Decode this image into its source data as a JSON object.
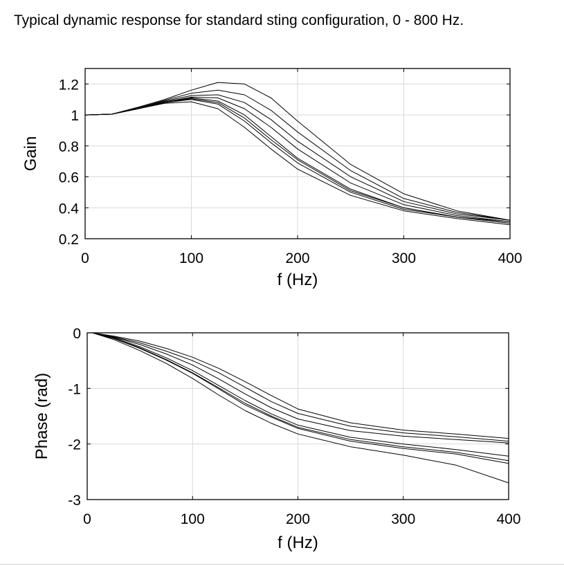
{
  "page": {
    "title": "Typical dynamic response for standard sting configuration, 0 - 800 Hz."
  },
  "chart_data": [
    {
      "type": "line",
      "xlabel": "f (Hz)",
      "ylabel": "Gain",
      "xlim": [
        0,
        400
      ],
      "ylim": [
        0.2,
        1.3
      ],
      "xticks": [
        0,
        100,
        200,
        300,
        400
      ],
      "yticks": [
        0.2,
        0.4,
        0.6,
        0.8,
        1,
        1.2
      ],
      "xtick_labels": [
        "0",
        "100",
        "200",
        "300",
        "400"
      ],
      "ytick_labels": [
        "0.2",
        "0.4",
        "0.6",
        "0.8",
        "1",
        "1.2"
      ],
      "grid": true,
      "line_color": "#000000",
      "grid_color": "#d9d9d9",
      "series": [
        {
          "x": [
            0,
            25,
            50,
            75,
            100,
            125,
            150,
            175,
            200,
            250,
            300,
            350,
            400
          ],
          "values": [
            1.0,
            1.005,
            1.04,
            1.075,
            1.085,
            1.04,
            0.92,
            0.78,
            0.65,
            0.48,
            0.38,
            0.33,
            0.29
          ]
        },
        {
          "x": [
            0,
            25,
            50,
            75,
            100,
            125,
            150,
            175,
            200,
            250,
            300,
            350,
            400
          ],
          "values": [
            1.0,
            1.005,
            1.04,
            1.08,
            1.1,
            1.07,
            0.96,
            0.82,
            0.69,
            0.5,
            0.39,
            0.34,
            0.3
          ]
        },
        {
          "x": [
            0,
            25,
            50,
            75,
            100,
            125,
            150,
            175,
            200,
            250,
            300,
            350,
            400
          ],
          "values": [
            1.0,
            1.005,
            1.04,
            1.08,
            1.105,
            1.08,
            0.98,
            0.84,
            0.71,
            0.51,
            0.4,
            0.34,
            0.3
          ]
        },
        {
          "x": [
            0,
            25,
            50,
            75,
            100,
            125,
            150,
            175,
            200,
            250,
            300,
            350,
            400
          ],
          "values": [
            1.0,
            1.005,
            1.04,
            1.08,
            1.11,
            1.09,
            1.0,
            0.86,
            0.72,
            0.52,
            0.4,
            0.34,
            0.31
          ]
        },
        {
          "x": [
            0,
            25,
            50,
            75,
            100,
            125,
            150,
            175,
            200,
            250,
            300,
            350,
            400
          ],
          "values": [
            1.0,
            1.005,
            1.045,
            1.085,
            1.115,
            1.11,
            1.04,
            0.92,
            0.78,
            0.56,
            0.42,
            0.35,
            0.31
          ]
        },
        {
          "x": [
            0,
            25,
            50,
            75,
            100,
            125,
            150,
            175,
            200,
            250,
            300,
            350,
            400
          ],
          "values": [
            1.0,
            1.005,
            1.045,
            1.09,
            1.125,
            1.13,
            1.08,
            0.97,
            0.83,
            0.6,
            0.44,
            0.36,
            0.32
          ]
        },
        {
          "x": [
            0,
            25,
            50,
            75,
            100,
            125,
            150,
            175,
            200,
            250,
            300,
            350,
            400
          ],
          "values": [
            1.0,
            1.005,
            1.045,
            1.095,
            1.14,
            1.16,
            1.13,
            1.03,
            0.89,
            0.64,
            0.46,
            0.37,
            0.32
          ]
        },
        {
          "x": [
            0,
            25,
            50,
            75,
            100,
            125,
            150,
            175,
            200,
            250,
            300,
            350,
            400
          ],
          "values": [
            1.0,
            1.005,
            1.05,
            1.1,
            1.16,
            1.21,
            1.2,
            1.11,
            0.96,
            0.68,
            0.49,
            0.38,
            0.32
          ]
        }
      ]
    },
    {
      "type": "line",
      "xlabel": "f (Hz)",
      "ylabel": "Phase (rad)",
      "xlim": [
        0,
        400
      ],
      "ylim": [
        -3,
        0
      ],
      "xticks": [
        0,
        100,
        200,
        300,
        400
      ],
      "yticks": [
        -3,
        -2,
        -1,
        0
      ],
      "xtick_labels": [
        "0",
        "100",
        "200",
        "300",
        "400"
      ],
      "ytick_labels": [
        "-3",
        "-2",
        "-1",
        "0"
      ],
      "grid": true,
      "line_color": "#000000",
      "grid_color": "#d9d9d9",
      "series": [
        {
          "x": [
            5,
            25,
            50,
            75,
            100,
            125,
            150,
            175,
            200,
            250,
            300,
            350,
            400
          ],
          "values": [
            0,
            -0.12,
            -0.32,
            -0.55,
            -0.82,
            -1.12,
            -1.4,
            -1.63,
            -1.82,
            -2.05,
            -2.2,
            -2.38,
            -2.7
          ]
        },
        {
          "x": [
            5,
            25,
            50,
            75,
            100,
            125,
            150,
            175,
            200,
            250,
            300,
            350,
            400
          ],
          "values": [
            0,
            -0.1,
            -0.28,
            -0.49,
            -0.73,
            -1.01,
            -1.3,
            -1.52,
            -1.72,
            -1.95,
            -2.08,
            -2.18,
            -2.35
          ]
        },
        {
          "x": [
            5,
            25,
            50,
            75,
            100,
            125,
            150,
            175,
            200,
            250,
            300,
            350,
            400
          ],
          "values": [
            0,
            -0.1,
            -0.27,
            -0.48,
            -0.72,
            -0.99,
            -1.27,
            -1.5,
            -1.7,
            -1.92,
            -2.05,
            -2.15,
            -2.3
          ]
        },
        {
          "x": [
            5,
            25,
            50,
            75,
            100,
            125,
            150,
            175,
            200,
            250,
            300,
            350,
            400
          ],
          "values": [
            0,
            -0.09,
            -0.25,
            -0.45,
            -0.68,
            -0.95,
            -1.22,
            -1.46,
            -1.66,
            -1.88,
            -2.0,
            -2.1,
            -2.22
          ]
        },
        {
          "x": [
            5,
            25,
            50,
            75,
            100,
            125,
            150,
            175,
            200,
            250,
            300,
            350,
            400
          ],
          "values": [
            0,
            -0.08,
            -0.21,
            -0.38,
            -0.58,
            -0.83,
            -1.1,
            -1.35,
            -1.55,
            -1.76,
            -1.86,
            -1.92,
            -1.98
          ]
        },
        {
          "x": [
            5,
            25,
            50,
            75,
            100,
            125,
            150,
            175,
            200,
            250,
            300,
            350,
            400
          ],
          "values": [
            0,
            -0.07,
            -0.18,
            -0.33,
            -0.5,
            -0.72,
            -0.98,
            -1.24,
            -1.45,
            -1.68,
            -1.8,
            -1.87,
            -1.95
          ]
        },
        {
          "x": [
            5,
            25,
            50,
            75,
            100,
            125,
            150,
            175,
            200,
            250,
            300,
            350,
            400
          ],
          "values": [
            0,
            -0.06,
            -0.15,
            -0.28,
            -0.44,
            -0.64,
            -0.88,
            -1.13,
            -1.37,
            -1.62,
            -1.75,
            -1.82,
            -1.9
          ]
        }
      ]
    }
  ]
}
